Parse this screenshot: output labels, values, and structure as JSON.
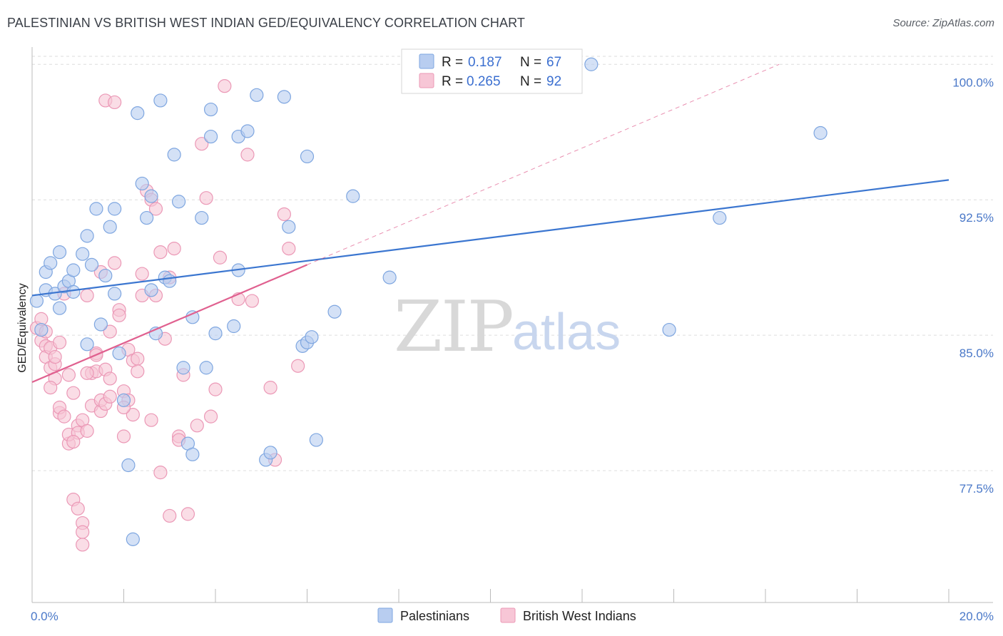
{
  "title": "PALESTINIAN VS BRITISH WEST INDIAN GED/EQUIVALENCY CORRELATION CHART",
  "source": "Source: ZipAtlas.com",
  "watermark": {
    "zip": "ZIP",
    "atlas": "atlas"
  },
  "colors": {
    "blue": "#3b76d0",
    "blue_fill": "#b8cdf0",
    "blue_stroke": "#7ea6e0",
    "pink": "#e0608f",
    "pink_fill": "#f7c6d6",
    "pink_stroke": "#eb98b6",
    "grid": "#dedede",
    "tick_label": "#4a78c8"
  },
  "legend": {
    "r_label": "R =",
    "n_label": "N =",
    "rows": [
      {
        "series": "Palestinians",
        "r": "0.187",
        "n": "67"
      },
      {
        "series": "British West Indians",
        "r": "0.265",
        "n": "92"
      }
    ]
  },
  "bottom_legend": [
    "Palestinians",
    "British West Indians"
  ],
  "chart_data": {
    "type": "scatter",
    "title": "PALESTINIAN VS BRITISH WEST INDIAN GED/EQUIVALENCY CORRELATION CHART",
    "xlabel": "",
    "ylabel": "GED/Equivalency",
    "xlim": [
      0,
      20
    ],
    "ylim": [
      70.2,
      100.8
    ],
    "x_tick_labels": [
      "0.0%",
      "20.0%"
    ],
    "y_ticks": [
      77.5,
      85.0,
      92.5,
      100.0
    ],
    "y_tick_labels": [
      "77.5%",
      "85.0%",
      "92.5%",
      "100.0%"
    ],
    "series": [
      {
        "name": "Palestinians",
        "r": 0.187,
        "n": 67,
        "trend": {
          "x": [
            0,
            20
          ],
          "y": [
            87.2,
            93.6
          ],
          "style": "solid"
        },
        "points": [
          [
            0.1,
            86.9
          ],
          [
            0.2,
            85.3
          ],
          [
            0.3,
            87.5
          ],
          [
            0.3,
            88.5
          ],
          [
            0.4,
            89.0
          ],
          [
            0.5,
            87.3
          ],
          [
            0.6,
            86.5
          ],
          [
            0.6,
            89.6
          ],
          [
            0.7,
            87.7
          ],
          [
            0.8,
            88.0
          ],
          [
            0.9,
            88.6
          ],
          [
            0.9,
            87.4
          ],
          [
            1.1,
            89.5
          ],
          [
            1.2,
            90.5
          ],
          [
            1.3,
            88.9
          ],
          [
            1.4,
            92.0
          ],
          [
            1.5,
            85.6
          ],
          [
            1.6,
            88.3
          ],
          [
            1.7,
            91.0
          ],
          [
            1.8,
            92.0
          ],
          [
            1.8,
            87.3
          ],
          [
            1.9,
            84.0
          ],
          [
            2.0,
            81.4
          ],
          [
            2.1,
            77.8
          ],
          [
            2.2,
            73.7
          ],
          [
            2.3,
            97.3
          ],
          [
            2.4,
            93.4
          ],
          [
            2.5,
            91.5
          ],
          [
            2.6,
            92.7
          ],
          [
            2.6,
            87.5
          ],
          [
            2.7,
            85.1
          ],
          [
            2.8,
            98.0
          ],
          [
            2.9,
            88.2
          ],
          [
            3.0,
            88.0
          ],
          [
            3.1,
            95.0
          ],
          [
            3.2,
            92.4
          ],
          [
            3.3,
            83.2
          ],
          [
            3.4,
            79.0
          ],
          [
            3.5,
            86.0
          ],
          [
            3.5,
            78.4
          ],
          [
            3.7,
            91.5
          ],
          [
            3.8,
            83.2
          ],
          [
            3.9,
            97.5
          ],
          [
            3.9,
            96.0
          ],
          [
            4.0,
            85.1
          ],
          [
            4.4,
            85.5
          ],
          [
            4.5,
            88.6
          ],
          [
            4.5,
            96.0
          ],
          [
            4.7,
            96.3
          ],
          [
            4.9,
            98.3
          ],
          [
            5.1,
            78.1
          ],
          [
            5.2,
            78.5
          ],
          [
            5.5,
            98.2
          ],
          [
            5.6,
            91.0
          ],
          [
            5.9,
            84.4
          ],
          [
            6.0,
            84.6
          ],
          [
            6.1,
            84.9
          ],
          [
            6.2,
            79.2
          ],
          [
            6.6,
            86.3
          ],
          [
            7.0,
            92.7
          ],
          [
            7.8,
            88.2
          ],
          [
            12.2,
            100.0
          ],
          [
            13.9,
            85.3
          ],
          [
            15.0,
            91.5
          ],
          [
            17.2,
            96.2
          ],
          [
            1.2,
            84.5
          ],
          [
            6.0,
            94.9
          ]
        ]
      },
      {
        "name": "British West Indians",
        "r": 0.265,
        "n": 92,
        "trend": {
          "x": [
            0,
            6.0
          ],
          "y": [
            82.4,
            88.9
          ],
          "style": "solid"
        },
        "trend_extension": {
          "x": [
            6.0,
            16.3
          ],
          "y": [
            88.9,
            100.0
          ],
          "style": "dashed"
        },
        "points": [
          [
            0.1,
            85.4
          ],
          [
            0.2,
            85.9
          ],
          [
            0.2,
            84.7
          ],
          [
            0.3,
            84.4
          ],
          [
            0.3,
            83.8
          ],
          [
            0.4,
            84.3
          ],
          [
            0.4,
            83.2
          ],
          [
            0.5,
            83.4
          ],
          [
            0.5,
            82.6
          ],
          [
            0.5,
            83.8
          ],
          [
            0.6,
            80.7
          ],
          [
            0.6,
            81.0
          ],
          [
            0.6,
            84.6
          ],
          [
            0.7,
            80.5
          ],
          [
            0.7,
            87.3
          ],
          [
            0.8,
            79.0
          ],
          [
            0.8,
            79.5
          ],
          [
            0.8,
            82.8
          ],
          [
            0.9,
            81.8
          ],
          [
            0.9,
            75.9
          ],
          [
            1.0,
            75.4
          ],
          [
            1.0,
            80.0
          ],
          [
            1.0,
            79.6
          ],
          [
            1.1,
            80.3
          ],
          [
            1.1,
            74.6
          ],
          [
            1.1,
            74.1
          ],
          [
            1.1,
            73.4
          ],
          [
            1.2,
            79.7
          ],
          [
            1.2,
            87.2
          ],
          [
            1.3,
            81.1
          ],
          [
            1.3,
            82.9
          ],
          [
            1.4,
            84.0
          ],
          [
            1.4,
            83.9
          ],
          [
            1.4,
            83.0
          ],
          [
            1.5,
            80.8
          ],
          [
            1.5,
            81.4
          ],
          [
            1.6,
            83.1
          ],
          [
            1.6,
            81.2
          ],
          [
            1.7,
            82.6
          ],
          [
            1.7,
            81.6
          ],
          [
            1.8,
            89.0
          ],
          [
            1.9,
            86.4
          ],
          [
            1.9,
            86.1
          ],
          [
            2.0,
            81.9
          ],
          [
            2.0,
            79.4
          ],
          [
            2.1,
            84.2
          ],
          [
            2.1,
            81.4
          ],
          [
            2.2,
            80.6
          ],
          [
            2.2,
            83.6
          ],
          [
            2.3,
            83.7
          ],
          [
            2.3,
            83.0
          ],
          [
            2.4,
            87.2
          ],
          [
            2.5,
            93.0
          ],
          [
            2.6,
            92.5
          ],
          [
            2.7,
            92.0
          ],
          [
            2.7,
            87.2
          ],
          [
            2.8,
            89.6
          ],
          [
            2.8,
            77.4
          ],
          [
            2.9,
            84.8
          ],
          [
            3.0,
            75.0
          ],
          [
            3.0,
            88.2
          ],
          [
            3.1,
            89.8
          ],
          [
            3.2,
            79.4
          ],
          [
            3.2,
            79.2
          ],
          [
            3.3,
            82.8
          ],
          [
            3.4,
            75.1
          ],
          [
            3.6,
            80.0
          ],
          [
            3.7,
            95.6
          ],
          [
            3.8,
            92.6
          ],
          [
            3.9,
            80.5
          ],
          [
            4.0,
            82.0
          ],
          [
            4.1,
            89.3
          ],
          [
            4.2,
            98.8
          ],
          [
            4.5,
            87.0
          ],
          [
            4.7,
            95.0
          ],
          [
            4.8,
            86.9
          ],
          [
            5.2,
            82.1
          ],
          [
            5.3,
            78.1
          ],
          [
            5.5,
            91.7
          ],
          [
            5.6,
            89.8
          ],
          [
            5.8,
            83.3
          ],
          [
            1.6,
            98.0
          ],
          [
            1.8,
            97.9
          ],
          [
            0.3,
            85.2
          ],
          [
            1.5,
            88.5
          ],
          [
            2.4,
            88.4
          ],
          [
            1.7,
            85.2
          ],
          [
            0.4,
            82.1
          ],
          [
            1.2,
            82.9
          ],
          [
            0.9,
            79.1
          ],
          [
            2.0,
            81.0
          ],
          [
            2.6,
            80.3
          ]
        ]
      }
    ]
  }
}
